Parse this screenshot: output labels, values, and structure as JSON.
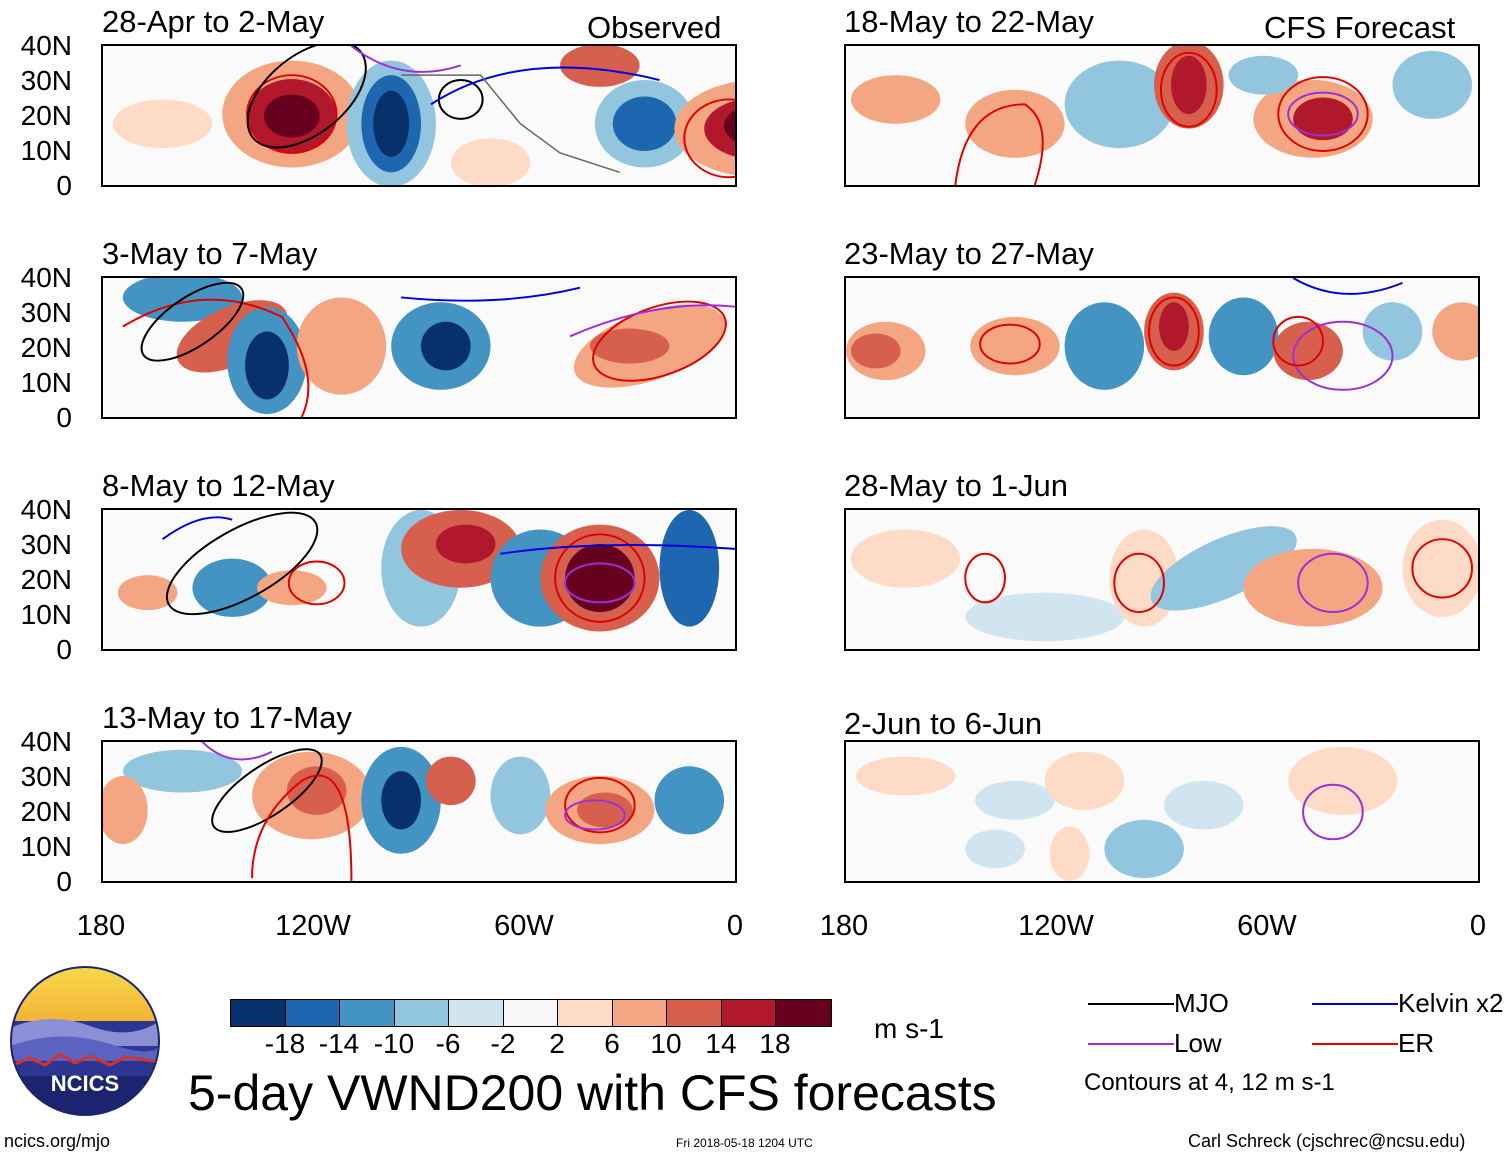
{
  "observed_label": "Observed",
  "forecast_label": "CFS Forecast",
  "latitude_labels": [
    "40N",
    "30N",
    "20N",
    "10N",
    "0"
  ],
  "longitude_labels": [
    "180",
    "120W",
    "60W",
    "0"
  ],
  "panels": [
    {
      "title": "28-Apr to 2-May",
      "type": "observed"
    },
    {
      "title": "3-May to 7-May",
      "type": "observed"
    },
    {
      "title": "8-May to 12-May",
      "type": "observed"
    },
    {
      "title": "13-May to 17-May",
      "type": "observed"
    },
    {
      "title": "18-May to 22-May",
      "type": "forecast"
    },
    {
      "title": "23-May to 27-May",
      "type": "forecast"
    },
    {
      "title": "28-May to 1-Jun",
      "type": "forecast"
    },
    {
      "title": "2-Jun to 6-Jun",
      "type": "forecast"
    }
  ],
  "colorbar": {
    "colors": [
      "#08306b",
      "#1f66b0",
      "#4393c3",
      "#92c5de",
      "#d1e5f0",
      "#f7f7f7",
      "#fddbc7",
      "#f4a582",
      "#d6604d",
      "#b2182b",
      "#67001f"
    ],
    "ticks": [
      "-18",
      "-14",
      "-10",
      "-6",
      "-2",
      "2",
      "6",
      "10",
      "14",
      "18"
    ],
    "units": "m s-1"
  },
  "main_title": "5-day VWND200 with CFS forecasts",
  "legend": [
    {
      "label": "MJO",
      "color": "#000000"
    },
    {
      "label": "Kelvin x2",
      "color": "#0000dd"
    },
    {
      "label": "Low",
      "color": "#9b30d9"
    },
    {
      "label": "ER",
      "color": "#e00000"
    }
  ],
  "contours_note": "Contours at 4, 12 m s-1",
  "logo_text": "NCICS",
  "footer": {
    "left": "ncics.org/mjo",
    "center": "Fri 2018-05-18 1204 UTC",
    "right": "Carl Schreck (cjschrec@ncsu.edu)"
  }
}
